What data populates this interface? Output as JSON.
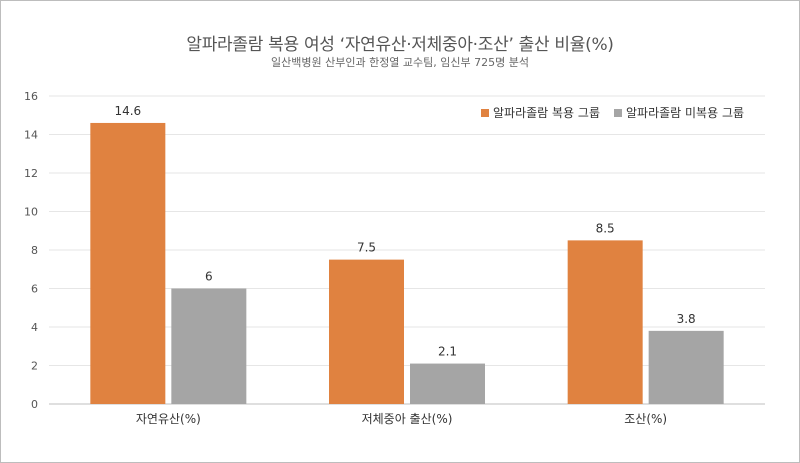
{
  "chart_data": {
    "type": "bar",
    "title": "알파라졸람 복용 여성 ‘자연유산·저체중아·조산’ 출산 비율(%)",
    "subtitle": "일산백병원 산부인과 한정열 교수팀, 임신부 725명 분석",
    "categories": [
      "자연유산(%)",
      "저체중아 출산(%)",
      "조산(%)"
    ],
    "series": [
      {
        "name": "알파라졸람 복용 그룹",
        "values": [
          14.6,
          7.5,
          8.5
        ],
        "color": "#E08240"
      },
      {
        "name": "알파라졸람 미복용 그룹",
        "values": [
          6,
          2.1,
          3.8
        ],
        "color": "#A5A5A5"
      }
    ],
    "ylim": [
      0,
      16
    ],
    "yticks": [
      "0",
      "2",
      "4",
      "6",
      "8",
      "10",
      "12",
      "14",
      "16"
    ],
    "data_labels": [
      [
        "14.6",
        "7.5",
        "8.5"
      ],
      [
        "6",
        "2.1",
        "3.8"
      ]
    ],
    "grid": true,
    "legend_position": "top-right"
  }
}
